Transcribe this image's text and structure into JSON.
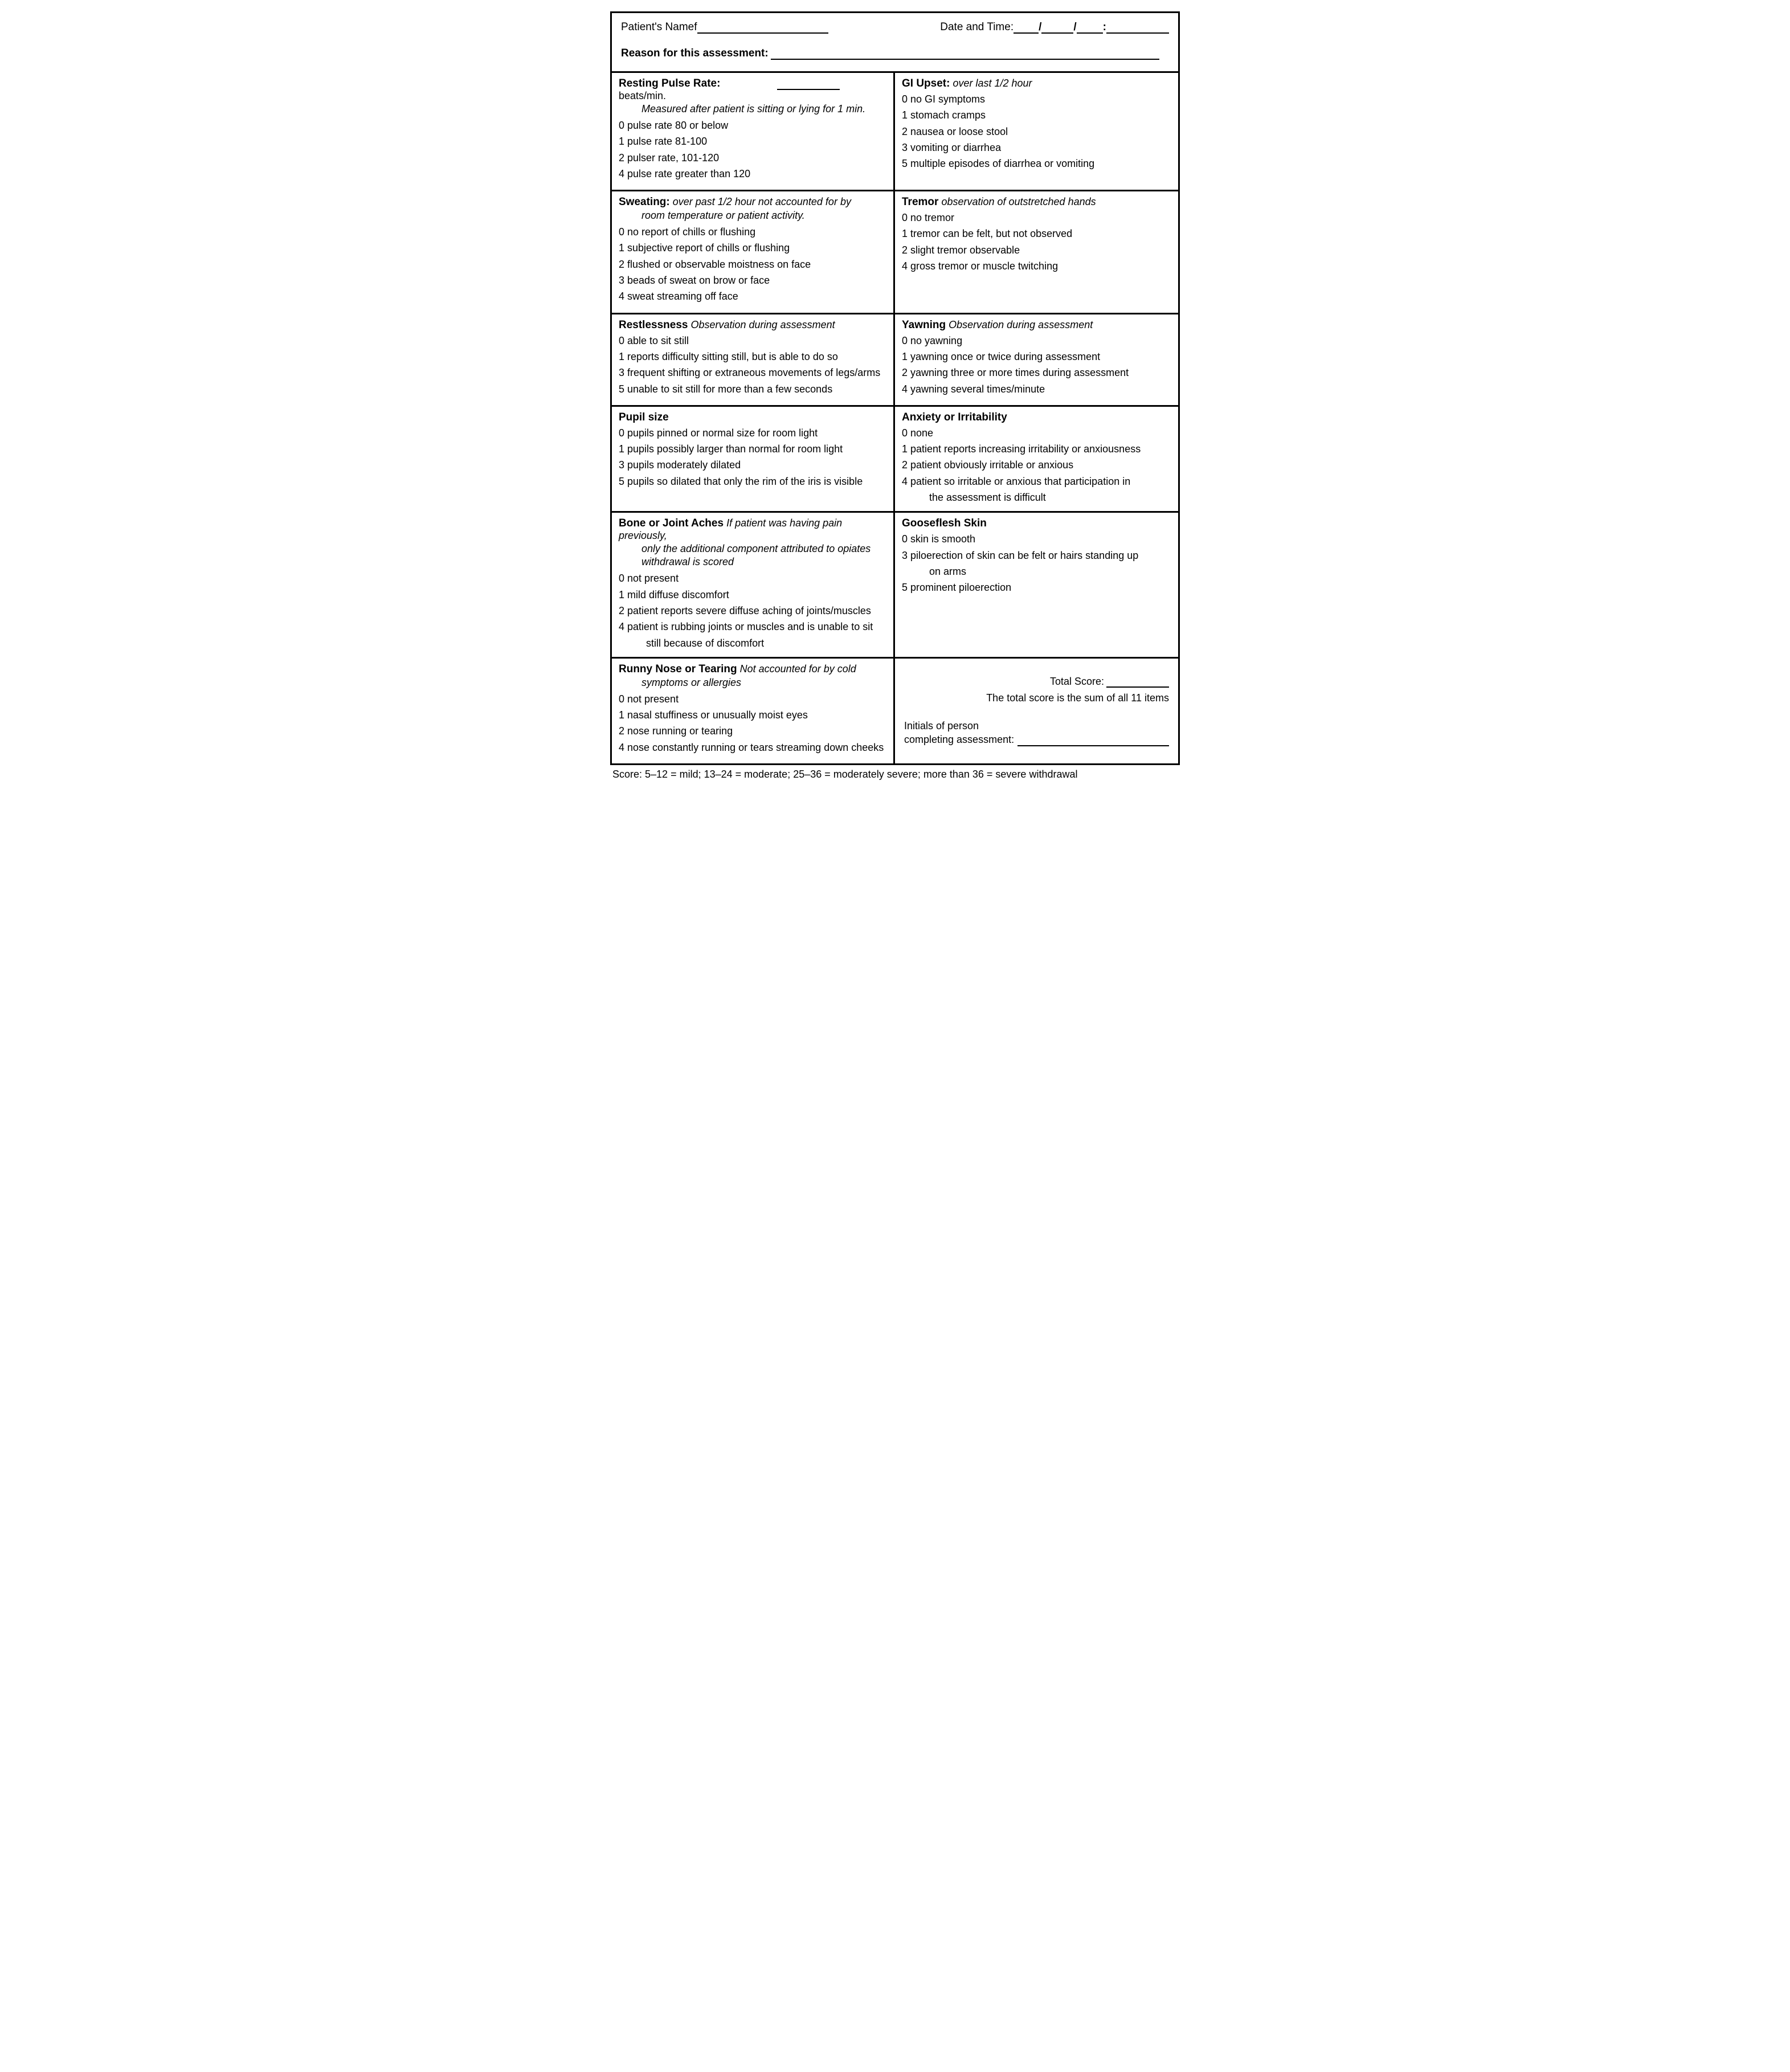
{
  "header": {
    "patient_name_label": "Patient's Namef",
    "date_label": "Date and Time:",
    "slash": "/",
    "colon": ":",
    "reason_label": "Reason for this assessment:"
  },
  "cells": {
    "pulse": {
      "title": "Resting Pulse Rate:",
      "unit": "beats/min.",
      "note": "Measured after patient is sitting or lying for 1 min.",
      "opts": [
        "0 pulse rate 80 or below",
        "1 pulse rate 81-100",
        "2 pulser rate, 101-120",
        "4 pulse rate greater than 120"
      ]
    },
    "gi": {
      "title": "GI Upset:",
      "sub": "over last 1/2 hour",
      "opts": [
        "0 no GI symptoms",
        "1 stomach cramps",
        "2 nausea or loose stool",
        "3 vomiting or diarrhea",
        "5 multiple episodes of diarrhea or vomiting"
      ]
    },
    "sweating": {
      "title": "Sweating:",
      "sub": "over past 1/2 hour not accounted for by",
      "sub2": "room temperature or patient activity.",
      "opts": [
        "0 no report of chills or flushing",
        "1 subjective report of chills or flushing",
        "2 flushed or observable moistness on face",
        "3 beads of sweat on brow or face",
        "4 sweat streaming off face"
      ]
    },
    "tremor": {
      "title": "Tremor",
      "sub": "observation of outstretched hands",
      "opts": [
        "0 no tremor",
        "1 tremor can be felt, but not observed",
        "2 slight tremor observable",
        "4 gross tremor or muscle twitching"
      ]
    },
    "restlessness": {
      "title": "Restlessness",
      "sub": "Observation during assessment",
      "opts": [
        "0 able to sit still",
        "1 reports difficulty sitting still, but is able to do so",
        "3 frequent shifting or extraneous movements of legs/arms",
        "5 unable to sit still for more than a few seconds"
      ]
    },
    "yawning": {
      "title": "Yawning",
      "sub": "Observation during assessment",
      "opts": [
        "0 no yawning",
        "1 yawning once or twice during assessment",
        "2 yawning three or more times during assessment",
        "4 yawning several times/minute"
      ]
    },
    "pupil": {
      "title": "Pupil size",
      "opts": [
        "0 pupils pinned or normal size for room light",
        "1 pupils possibly larger than normal for room light",
        "3 pupils moderately dilated",
        "5 pupils so dilated that only the rim of the iris is visible"
      ]
    },
    "anxiety": {
      "title": "Anxiety or Irritability",
      "opts": [
        " 0 none",
        "1 patient reports increasing irritability or anxiousness",
        "2 patient obviously irritable or anxious",
        "4 patient so irritable or anxious that participation in"
      ],
      "opt4_cont": "the assessment is difficult"
    },
    "bone": {
      "title": "Bone or Joint Aches",
      "sub": "If patient was having pain previously,",
      "sub2": "only the additional component attributed to opiates",
      "sub3": "withdrawal is scored",
      "opts": [
        "0 not present",
        "1 mild diffuse discomfort",
        "2 patient reports severe diffuse aching of joints/muscles",
        "4 patient is rubbing joints or muscles and is unable to sit"
      ],
      "opt4_cont": "still because of discomfort"
    },
    "goose": {
      "title": "Gooseflesh Skin",
      "opts": [
        "0 skin is smooth",
        "3 piloerection  of skin can be felt or hairs standing up"
      ],
      "opt2_cont": "on arms",
      "opt3": "5 prominent piloerection"
    },
    "runny": {
      "title": "Runny Nose or Tearing",
      "sub": "Not accounted for by cold",
      "sub2": "symptoms or allergies",
      "opts": [
        "0 not present",
        "1 nasal stuffiness or unusually moist eyes",
        "2 nose running or tearing",
        "4 nose constantly running or tears streaming down cheeks"
      ]
    }
  },
  "total": {
    "total_label": "Total Score:",
    "sum_note": "The total score is the sum of all 11 items",
    "initials_l1": "Initials of person",
    "initials_l2": "completing assessment:"
  },
  "footer": "Score: 5–12 = mild; 13–24 = moderate; 25–36 = moderately severe; more than 36 = severe withdrawal"
}
